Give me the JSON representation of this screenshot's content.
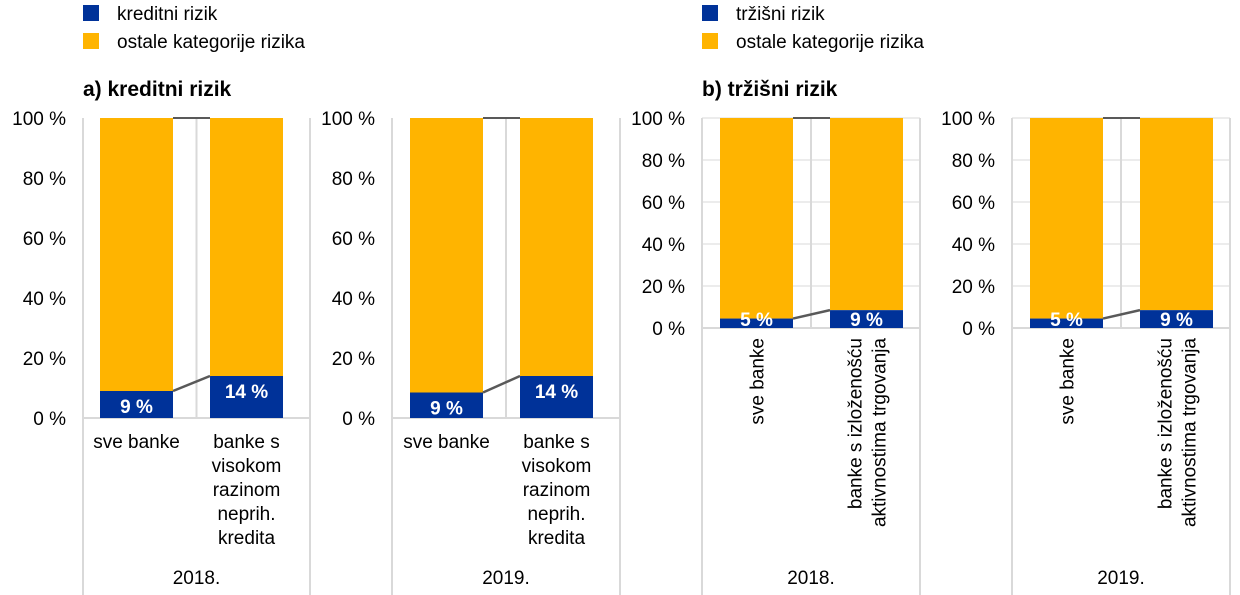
{
  "colors": {
    "blue": "#003299",
    "orange": "#FFB400",
    "grid": "#d9d9d9",
    "connector": "#595959"
  },
  "legends": [
    {
      "items": [
        "kreditni rizik",
        "ostale kategorije rizika"
      ]
    },
    {
      "items": [
        "tržišni rizik",
        "ostale kategorije rizika"
      ]
    }
  ],
  "panel_titles": [
    "a) kreditni rizik",
    "b) tržišni rizik"
  ],
  "chart_data": [
    {
      "type": "bar",
      "stacked": true,
      "panel": "a",
      "year": "2018.",
      "categories": [
        [
          "sve banke"
        ],
        [
          "banke s",
          "visokom",
          "razinom",
          "neprih.",
          "kredita"
        ]
      ],
      "series": [
        {
          "name": "kreditni rizik",
          "values": [
            9,
            14
          ],
          "labels": [
            "9 %",
            "14 %"
          ]
        },
        {
          "name": "ostale kategorije rizika",
          "values": [
            91,
            86
          ]
        }
      ],
      "yticks": [
        "0 %",
        "20 %",
        "40 %",
        "60 %",
        "80 %",
        "100 %"
      ],
      "ylim": [
        0,
        100
      ]
    },
    {
      "type": "bar",
      "stacked": true,
      "panel": "a",
      "year": "2019.",
      "categories": [
        [
          "sve banke"
        ],
        [
          "banke s",
          "visokom",
          "razinom",
          "neprih.",
          "kredita"
        ]
      ],
      "series": [
        {
          "name": "kreditni rizik",
          "values": [
            8.5,
            14
          ],
          "labels": [
            "9 %",
            "14 %"
          ]
        },
        {
          "name": "ostale kategorije rizika",
          "values": [
            91.5,
            86
          ]
        }
      ],
      "yticks": [
        "0 %",
        "20 %",
        "40 %",
        "60 %",
        "80 %",
        "100 %"
      ],
      "ylim": [
        0,
        100
      ]
    },
    {
      "type": "bar",
      "stacked": true,
      "panel": "b",
      "year": "2018.",
      "categories": [
        [
          "sve banke"
        ],
        [
          "banke s izloženošću",
          "aktivnostima trgovanja"
        ]
      ],
      "series": [
        {
          "name": "tržišni rizik",
          "values": [
            4.5,
            8.5
          ],
          "labels": [
            "5 %",
            "9 %"
          ]
        },
        {
          "name": "ostale kategorije rizika",
          "values": [
            95.5,
            91.5
          ]
        }
      ],
      "yticks": [
        "0 %",
        "20 %",
        "40 %",
        "60 %",
        "80 %",
        "100 %"
      ],
      "ylim": [
        0,
        100
      ]
    },
    {
      "type": "bar",
      "stacked": true,
      "panel": "b",
      "year": "2019.",
      "categories": [
        [
          "sve banke"
        ],
        [
          "banke s izloženošću",
          "aktivnostima trgovanja"
        ]
      ],
      "series": [
        {
          "name": "tržišni rizik",
          "values": [
            4.5,
            8.5
          ],
          "labels": [
            "5 %",
            "9 %"
          ]
        },
        {
          "name": "ostale kategorije rizika",
          "values": [
            95.5,
            91.5
          ]
        }
      ],
      "yticks": [
        "0 %",
        "20 %",
        "40 %",
        "60 %",
        "80 %",
        "100 %"
      ],
      "ylim": [
        0,
        100
      ]
    }
  ]
}
